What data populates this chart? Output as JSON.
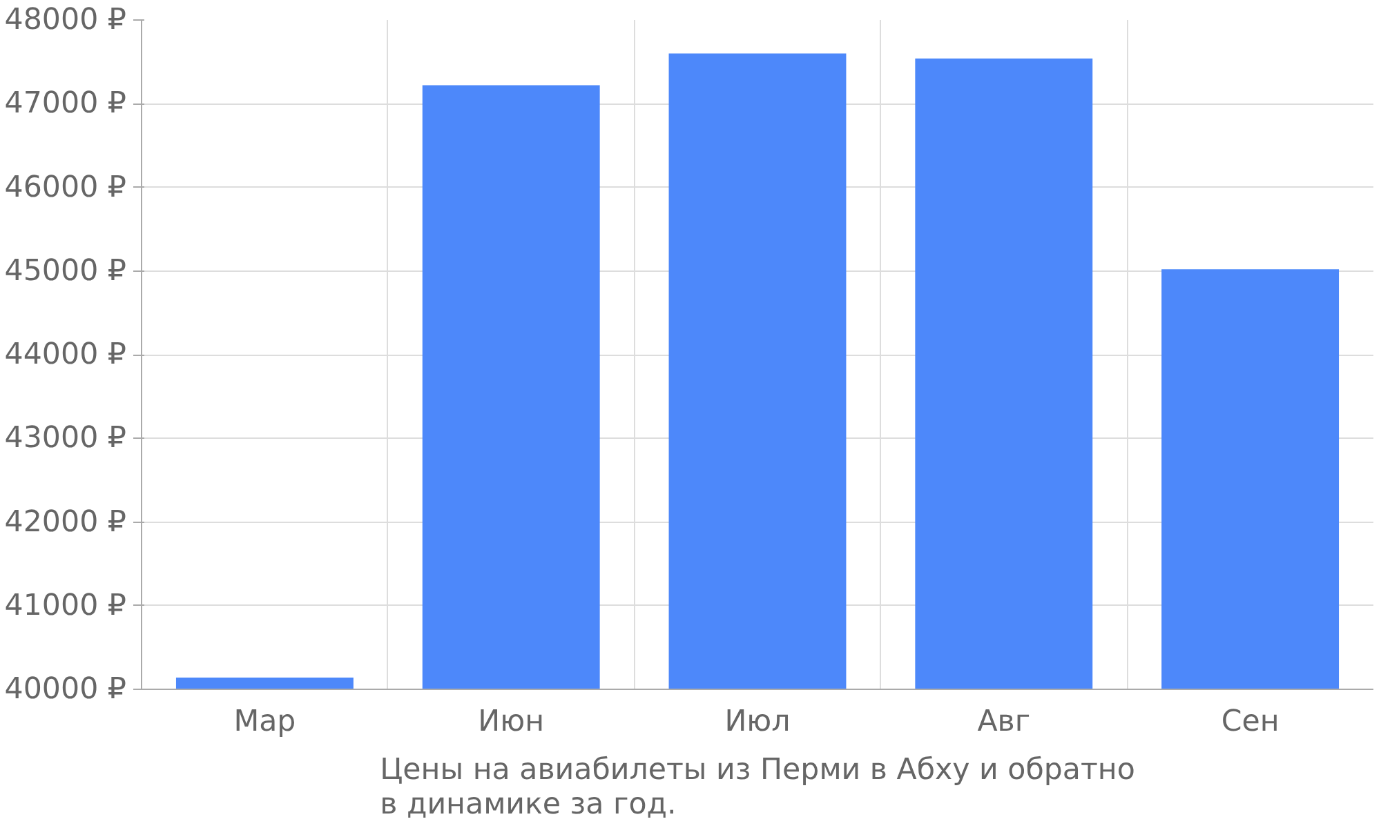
{
  "chart_data": {
    "type": "bar",
    "title": "Цены на авиабилеты из Перми в Абху и обратно\nв динамике за год.",
    "categories": [
      "Мар",
      "Июн",
      "Июл",
      "Авг",
      "Сен"
    ],
    "values": [
      40140,
      47220,
      47600,
      47540,
      45020
    ],
    "color": "#4d88fa",
    "ylim": [
      40000,
      48000
    ],
    "yticks": [
      {
        "value": 40000,
        "label": "40000 ₽"
      },
      {
        "value": 41000,
        "label": "41000 ₽"
      },
      {
        "value": 42000,
        "label": "42000 ₽"
      },
      {
        "value": 43000,
        "label": "43000 ₽"
      },
      {
        "value": 44000,
        "label": "44000 ₽"
      },
      {
        "value": 45000,
        "label": "45000 ₽"
      },
      {
        "value": 46000,
        "label": "46000 ₽"
      },
      {
        "value": 47000,
        "label": "47000 ₽"
      },
      {
        "value": 48000,
        "label": "48000 ₽"
      }
    ],
    "grid": true
  }
}
